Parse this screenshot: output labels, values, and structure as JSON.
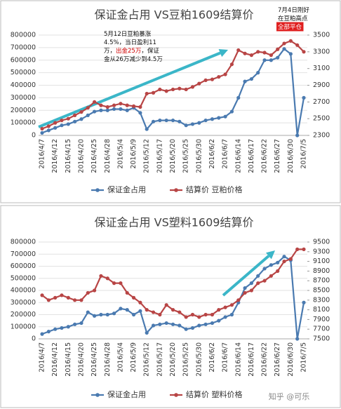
{
  "chart_data": [
    {
      "type": "line",
      "title": "保证金占用 VS豆粕1609结算价",
      "categories": [
        "2016/4/7",
        null,
        "2016/4/12",
        null,
        "2016/4/15",
        null,
        "2016/4/20",
        null,
        "2016/4/25",
        null,
        "2016/4/28",
        null,
        "2016/5/4",
        null,
        "2016/5/9",
        null,
        "2016/5/12",
        null,
        "2016/5/17",
        null,
        "2016/5/20",
        null,
        "2016/5/25",
        null,
        "2016/5/30",
        null,
        "2016/6/2",
        null,
        "2016/6/7",
        null,
        "2016/6/14",
        null,
        "2016/6/17",
        null,
        "2016/6/22",
        null,
        "2016/6/27",
        null,
        "2016/6/30",
        null,
        "2016/7/5"
      ],
      "series": [
        {
          "name": "保证金占用",
          "color": "#4a7ab0",
          "axis": "y",
          "values": [
            20000,
            40000,
            60000,
            80000,
            90000,
            110000,
            130000,
            160000,
            190000,
            200000,
            200000,
            210000,
            210000,
            200000,
            220000,
            180000,
            50000,
            110000,
            120000,
            120000,
            120000,
            110000,
            80000,
            90000,
            100000,
            120000,
            130000,
            140000,
            150000,
            190000,
            300000,
            430000,
            450000,
            500000,
            600000,
            600000,
            620000,
            690000,
            650000,
            0,
            300000
          ]
        },
        {
          "name": "结算价 豆粕价格",
          "color": "#b84545",
          "axis": "y2",
          "values": [
            2380,
            2410,
            2450,
            2480,
            2500,
            2540,
            2580,
            2630,
            2700,
            2660,
            2640,
            2660,
            2680,
            2660,
            2650,
            2640,
            2800,
            2810,
            2850,
            2830,
            2850,
            2860,
            2850,
            2880,
            2920,
            2960,
            2970,
            3000,
            3030,
            3150,
            3320,
            3280,
            3260,
            3300,
            3290,
            3260,
            3330,
            3400,
            3430,
            3380,
            3300
          ]
        }
      ],
      "ylim": [
        0,
        800000
      ],
      "yticks": [
        0,
        100000,
        200000,
        300000,
        400000,
        500000,
        600000,
        700000,
        800000
      ],
      "y2lim": [
        2300,
        3500
      ],
      "y2ticks": [
        2300,
        2500,
        2700,
        2900,
        3100,
        3300,
        3500
      ],
      "legend": "bottom",
      "annotations": [
        {
          "lines": [
            [
              {
                "text": "5月12日豆粕暴涨"
              }
            ],
            [
              {
                "text": "4.5%，当日盈利11"
              }
            ],
            [
              {
                "text": "万，"
              },
              {
                "text": "出金25万",
                "color": "#d00000"
              },
              {
                "text": "，保证"
              }
            ],
            [
              {
                "text": "金从26万减少到4.5万"
              }
            ]
          ]
        },
        {
          "lines": [
            [
              {
                "text": "7月4日刚好"
              }
            ],
            [
              {
                "text": "在豆粕高点"
              }
            ],
            [
              {
                "text": "全部平仓",
                "color": "#ffffff",
                "background": "#e02020"
              }
            ]
          ]
        }
      ]
    },
    {
      "type": "line",
      "title": "保证金占用 VS塑料1609结算价",
      "categories": [
        "2016/4/7",
        null,
        "2016/4/12",
        null,
        "2016/4/15",
        null,
        "2016/4/20",
        null,
        "2016/4/25",
        null,
        "2016/4/28",
        null,
        "2016/5/4",
        null,
        "2016/5/9",
        null,
        "2016/5/12",
        null,
        "2016/5/17",
        null,
        "2016/5/20",
        null,
        "2016/5/25",
        null,
        "2016/5/30",
        null,
        "2016/6/2",
        null,
        "2016/6/7",
        null,
        "2016/6/14",
        null,
        "2016/6/17",
        null,
        "2016/6/22",
        null,
        "2016/6/27",
        null,
        "2016/6/30",
        null,
        "2016/7/5"
      ],
      "series": [
        {
          "name": "保证金占用",
          "color": "#4a7ab0",
          "axis": "y",
          "values": [
            40000,
            60000,
            80000,
            90000,
            100000,
            120000,
            130000,
            220000,
            190000,
            200000,
            200000,
            210000,
            250000,
            240000,
            200000,
            230000,
            50000,
            110000,
            120000,
            130000,
            120000,
            110000,
            80000,
            90000,
            110000,
            120000,
            130000,
            150000,
            180000,
            200000,
            300000,
            420000,
            460000,
            520000,
            580000,
            610000,
            630000,
            680000,
            650000,
            0,
            300000
          ]
        },
        {
          "name": "结算价 塑料价格",
          "color": "#b84545",
          "axis": "y2",
          "values": [
            8400,
            8300,
            8350,
            8400,
            8350,
            8300,
            8300,
            8450,
            8500,
            8800,
            8750,
            8650,
            8650,
            8450,
            8350,
            8250,
            8100,
            8050,
            8000,
            8200,
            8100,
            8050,
            7950,
            8000,
            7950,
            8000,
            8000,
            8100,
            8150,
            8200,
            8300,
            8450,
            8500,
            8650,
            8700,
            8800,
            8900,
            9100,
            9150,
            9350,
            9350
          ]
        }
      ],
      "ylim": [
        0,
        800000
      ],
      "yticks": [
        0,
        100000,
        200000,
        300000,
        400000,
        500000,
        600000,
        700000,
        800000
      ],
      "y2lim": [
        7500,
        9500
      ],
      "y2ticks": [
        7500,
        7700,
        7900,
        8100,
        8300,
        8500,
        8700,
        8900,
        9100,
        9300,
        9500
      ],
      "legend": "bottom"
    }
  ],
  "watermark": "知乎 @可乐"
}
